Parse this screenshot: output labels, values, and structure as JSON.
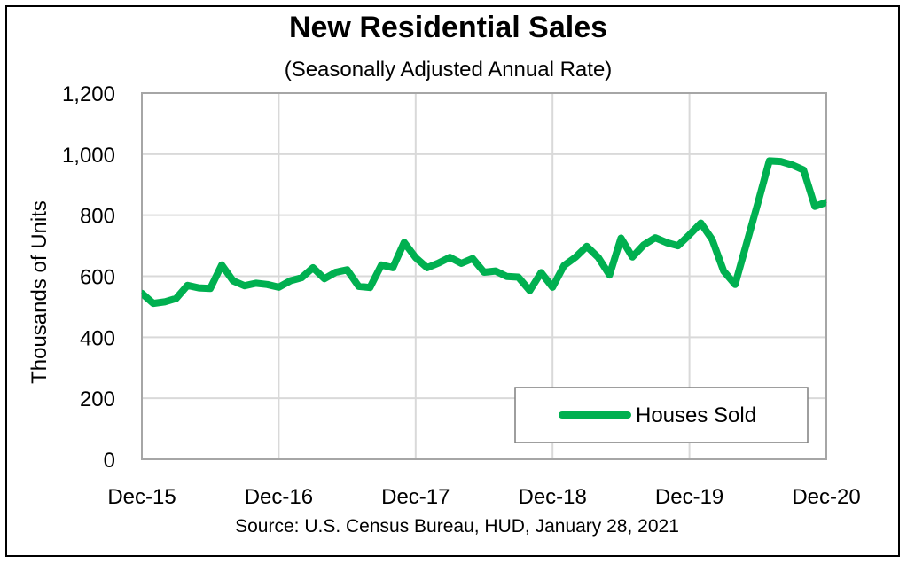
{
  "chart_data": {
    "type": "line",
    "title": "New Residential Sales",
    "subtitle": "(Seasonally Adjusted Annual Rate)",
    "ylabel": "Thousands of Units",
    "xlabel": "",
    "ylim": [
      0,
      1200
    ],
    "yticks": [
      0,
      200,
      400,
      600,
      800,
      1000,
      1200
    ],
    "ytick_labels": [
      "0",
      "200",
      "400",
      "600",
      "800",
      "1,000",
      "1,200"
    ],
    "xlim": [
      0,
      60
    ],
    "xticks": [
      0,
      12,
      24,
      36,
      48,
      60
    ],
    "xtick_labels": [
      "Dec-15",
      "Dec-16",
      "Dec-17",
      "Dec-18",
      "Dec-19",
      "Dec-20"
    ],
    "grid": true,
    "legend_position": "bottom-right",
    "source": "Source:  U.S. Census Bureau, HUD, January 28, 2021",
    "series": [
      {
        "name": "Houses Sold",
        "color": "#00b050",
        "x": [
          0,
          1,
          2,
          3,
          4,
          5,
          6,
          7,
          8,
          9,
          10,
          11,
          12,
          13,
          14,
          15,
          16,
          17,
          18,
          19,
          20,
          21,
          22,
          23,
          24,
          25,
          26,
          27,
          28,
          29,
          30,
          31,
          32,
          33,
          34,
          35,
          36,
          37,
          38,
          39,
          40,
          41,
          42,
          43,
          44,
          45,
          46,
          47,
          48,
          49,
          50,
          51,
          52,
          53,
          54,
          55,
          56,
          57,
          58,
          59,
          60
        ],
        "values": [
          544,
          511,
          516,
          527,
          570,
          562,
          560,
          637,
          585,
          569,
          577,
          573,
          564,
          585,
          595,
          628,
          592,
          613,
          621,
          567,
          563,
          637,
          628,
          711,
          661,
          628,
          643,
          662,
          642,
          658,
          613,
          617,
          599,
          597,
          553,
          612,
          564,
          635,
          662,
          698,
          662,
          604,
          725,
          663,
          703,
          726,
          710,
          700,
          736,
          774,
          720,
          617,
          573,
          706,
          840,
          978,
          976,
          965,
          948,
          829,
          842
        ]
      }
    ]
  }
}
